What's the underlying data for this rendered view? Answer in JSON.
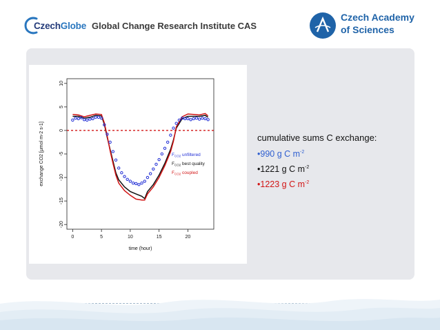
{
  "header": {
    "logo_czech": "Czech",
    "logo_globe": "Globe",
    "institute": "Global Change Research Institute CAS",
    "academy_line1": "Czech Academy",
    "academy_line2": "of Sciences"
  },
  "colors": {
    "brand_dark": "#243b7a",
    "brand_light": "#2a77bf",
    "academy_blue": "#1f63a8",
    "series_unfiltered": "#2431d6",
    "series_best": "#111111",
    "series_coupled": "#d21414",
    "zero_line": "#d21414"
  },
  "chart_data": {
    "type": "line",
    "xlabel": "time (hour)",
    "ylabel": "exchange CO2 [μmol m-2 s-1]",
    "xlim": [
      -1,
      24.5
    ],
    "ylim": [
      -21,
      11
    ],
    "xticks": [
      0,
      5,
      10,
      15,
      20
    ],
    "yticks": [
      -20,
      -15,
      -10,
      -5,
      0,
      5,
      10
    ],
    "hline": 0,
    "legend": {
      "placement": "right",
      "entries": [
        {
          "label": "F",
          "sub": "CO2",
          "text": " unfiltered",
          "color": "#2431d6"
        },
        {
          "label": "F",
          "sub": "CO2",
          "text": " best quality",
          "color": "#111111"
        },
        {
          "label": "F",
          "sub": "CO2",
          "text": " coupled",
          "color": "#d21414"
        }
      ]
    },
    "series": [
      {
        "name": "FCO2 unfiltered",
        "style": "points",
        "x": [
          0,
          0.5,
          1,
          1.5,
          2,
          2.5,
          3,
          3.5,
          4,
          4.5,
          5,
          5.5,
          6,
          6.5,
          7,
          7.5,
          8,
          8.5,
          9,
          9.5,
          10,
          10.5,
          11,
          11.5,
          12,
          12.5,
          13,
          13.5,
          14,
          14.5,
          15,
          15.5,
          16,
          16.5,
          17,
          17.5,
          18,
          18.5,
          19,
          19.5,
          20,
          20.5,
          21,
          21.5,
          22,
          22.5,
          23,
          23.5
        ],
        "values": [
          2.2,
          2.6,
          2.5,
          2.7,
          2.3,
          2.2,
          2.4,
          2.5,
          2.8,
          2.8,
          2.6,
          1.2,
          -0.8,
          -2.5,
          -4.5,
          -6.3,
          -8.0,
          -9.0,
          -9.8,
          -10.4,
          -10.8,
          -11.2,
          -11.3,
          -11.5,
          -11.2,
          -10.8,
          -10.0,
          -9.2,
          -8.2,
          -7.2,
          -6.2,
          -5.0,
          -3.8,
          -2.5,
          -1.0,
          0.5,
          1.5,
          2.2,
          2.6,
          2.5,
          2.5,
          2.3,
          2.5,
          2.6,
          2.4,
          2.6,
          2.5,
          2.3
        ]
      },
      {
        "name": "FCO2 best quality",
        "style": "line",
        "x": [
          0,
          1,
          2,
          3,
          4,
          5,
          5.5,
          6,
          6.5,
          7,
          7.5,
          8,
          9,
          10,
          11,
          12,
          12.5,
          13,
          14,
          15,
          16,
          17,
          17.5,
          18,
          19,
          20,
          21,
          22,
          23,
          23.5
        ],
        "values": [
          3.0,
          3.0,
          2.6,
          2.8,
          3.2,
          3.1,
          1.3,
          -1.5,
          -4.0,
          -6.5,
          -9.0,
          -10.5,
          -12.0,
          -13.0,
          -13.5,
          -14.0,
          -14.5,
          -13.0,
          -11.5,
          -9.5,
          -7.0,
          -4.0,
          -2.0,
          0.5,
          2.5,
          3.0,
          3.0,
          3.0,
          3.2,
          2.8
        ]
      },
      {
        "name": "FCO2 coupled",
        "style": "line",
        "x": [
          0,
          1,
          2,
          3,
          4,
          5,
          5.5,
          6,
          6.5,
          7,
          7.5,
          8,
          9,
          10,
          11,
          12,
          12.5,
          13,
          14,
          15,
          16,
          17,
          17.5,
          18,
          19,
          20,
          21,
          22,
          23,
          23.5
        ],
        "values": [
          3.4,
          3.3,
          2.9,
          3.2,
          3.5,
          3.4,
          1.6,
          -1.2,
          -4.3,
          -7.0,
          -9.5,
          -11.2,
          -12.8,
          -13.8,
          -14.6,
          -14.8,
          -14.8,
          -13.5,
          -12.0,
          -10.0,
          -7.5,
          -4.5,
          -2.3,
          0.8,
          2.9,
          3.5,
          3.4,
          3.3,
          3.6,
          3.1
        ]
      }
    ]
  },
  "summary": {
    "title": "cumulative sums C exchange:",
    "items": [
      {
        "text": "•990 g C m",
        "sup": "-2",
        "color": "#2f5fd0"
      },
      {
        "text": "•1221 g C m",
        "sup": "-2",
        "color": "#111111"
      },
      {
        "text": "•1223 g C m",
        "sup": "-2",
        "color": "#d21414"
      }
    ]
  }
}
